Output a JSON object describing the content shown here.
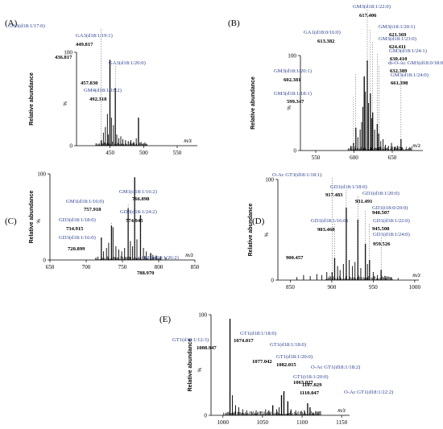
{
  "common": {
    "ylabel": "Relative abundance",
    "percent": "%",
    "xlabel": "m/z"
  },
  "chart_data": [
    {
      "type": "line",
      "panel": "(A)",
      "xlim": [
        400,
        580
      ],
      "xticks": [
        450,
        500,
        550
      ],
      "yticks": [
        0,
        100
      ],
      "ylim": [
        0,
        100
      ],
      "peaks": [
        {
          "mz": 436.817,
          "rel": 6
        },
        {
          "mz": 449.817,
          "rel": 92
        },
        {
          "mz": 457.83,
          "rel": 62
        },
        {
          "mz": 492.318,
          "rel": 30
        }
      ],
      "noise": [
        {
          "mz": 440.0,
          "rel": 14
        },
        {
          "mz": 443.0,
          "rel": 20
        },
        {
          "mz": 446.0,
          "rel": 34
        },
        {
          "mz": 447.5,
          "rel": 12
        },
        {
          "mz": 452.0,
          "rel": 30
        },
        {
          "mz": 455.0,
          "rel": 22
        },
        {
          "mz": 460.0,
          "rel": 12
        },
        {
          "mz": 463.0,
          "rel": 8
        },
        {
          "mz": 466.0,
          "rel": 10
        },
        {
          "mz": 469.0,
          "rel": 7
        },
        {
          "mz": 473.0,
          "rel": 6
        },
        {
          "mz": 477.0,
          "rel": 5
        },
        {
          "mz": 481.0,
          "rel": 6
        },
        {
          "mz": 485.0,
          "rel": 4
        },
        {
          "mz": 489.0,
          "rel": 8
        }
      ],
      "annotations": [
        {
          "text": "GA3(d18:1/17:0)",
          "value": "436.817"
        },
        {
          "text": "GA3(d18:1/19:1)",
          "value": "449.817"
        },
        {
          "text": "GA3(d18:1/20:0)",
          "value": "457.830"
        },
        {
          "text": "GM4(d18:1/16:2)",
          "value": "492.318"
        }
      ]
    },
    {
      "type": "line",
      "panel": "(B)",
      "xlim": [
        530,
        690
      ],
      "xticks": [
        550,
        600,
        650
      ],
      "yticks": [
        0,
        100
      ],
      "ylim": [
        0,
        100
      ],
      "peaks": [
        {
          "mz": 599.347,
          "rel": 8
        },
        {
          "mz": 602.381,
          "rel": 24
        },
        {
          "mz": 613.382,
          "rel": 78
        },
        {
          "mz": 617.406,
          "rel": 95
        },
        {
          "mz": 621.369,
          "rel": 60
        },
        {
          "mz": 624.411,
          "rel": 40
        },
        {
          "mz": 630.41,
          "rel": 28
        },
        {
          "mz": 632.389,
          "rel": 18
        },
        {
          "mz": 661.398,
          "rel": 12
        }
      ],
      "noise": [
        {
          "mz": 596.0,
          "rel": 5
        },
        {
          "mz": 605.0,
          "rel": 14
        },
        {
          "mz": 608.0,
          "rel": 22
        },
        {
          "mz": 610.0,
          "rel": 30
        },
        {
          "mz": 611.5,
          "rel": 46
        },
        {
          "mz": 615.0,
          "rel": 62
        },
        {
          "mz": 619.0,
          "rel": 50
        },
        {
          "mz": 623.0,
          "rel": 34
        },
        {
          "mz": 627.0,
          "rel": 22
        },
        {
          "mz": 635.0,
          "rel": 10
        },
        {
          "mz": 638.0,
          "rel": 12
        },
        {
          "mz": 641.0,
          "rel": 6
        },
        {
          "mz": 645.0,
          "rel": 5
        },
        {
          "mz": 649.0,
          "rel": 8
        },
        {
          "mz": 653.0,
          "rel": 4
        },
        {
          "mz": 657.0,
          "rel": 5
        }
      ],
      "annotations": [
        {
          "text": "GM3(d18:1/22:0)",
          "value": "617.406"
        },
        {
          "text": "GA1(d18:0/16:0)",
          "value": "613.382"
        },
        {
          "text": "GM3(t18:1/20:1)",
          "value": "621.369"
        },
        {
          "text": "GM3(d18:1/23:0)",
          "value": "624.411"
        },
        {
          "text": "GM3(d18:1/24:1)",
          "value": "630.410"
        },
        {
          "text": "di-O-Ac GM3(d18:0/18:0)",
          "value": "632.389"
        },
        {
          "text": "GM3(d18:1/24:0)",
          "value": "661.398"
        },
        {
          "text": "GM3(d18:1/20:1)",
          "value": "602.381"
        },
        {
          "text": "GM3(d18:1/18:1)",
          "value": "599.347"
        }
      ]
    },
    {
      "type": "line",
      "panel": "(C)",
      "xlim": [
        650,
        850
      ],
      "xticks": [
        650,
        700,
        750,
        800,
        850
      ],
      "yticks": [
        0,
        100
      ],
      "ylim": [
        0,
        100
      ],
      "peaks": [
        {
          "mz": 720.899,
          "rel": 26
        },
        {
          "mz": 734.915,
          "rel": 40
        },
        {
          "mz": 757.918,
          "rel": 60
        },
        {
          "mz": 766.898,
          "rel": 96
        },
        {
          "mz": 774.945,
          "rel": 52
        },
        {
          "mz": 788.97,
          "rel": 8
        }
      ],
      "noise": [
        {
          "mz": 724.0,
          "rel": 10
        },
        {
          "mz": 728.0,
          "rel": 14
        },
        {
          "mz": 731.0,
          "rel": 20
        },
        {
          "mz": 737.0,
          "rel": 38
        },
        {
          "mz": 741.0,
          "rel": 16
        },
        {
          "mz": 745.0,
          "rel": 12
        },
        {
          "mz": 749.0,
          "rel": 10
        },
        {
          "mz": 753.0,
          "rel": 14
        },
        {
          "mz": 761.0,
          "rel": 22
        },
        {
          "mz": 764.0,
          "rel": 16
        },
        {
          "mz": 770.0,
          "rel": 24
        },
        {
          "mz": 779.0,
          "rel": 14
        },
        {
          "mz": 783.0,
          "rel": 10
        },
        {
          "mz": 792.0,
          "rel": 6
        },
        {
          "mz": 797.0,
          "rel": 5
        },
        {
          "mz": 803.0,
          "rel": 4
        },
        {
          "mz": 810.0,
          "rel": 3
        }
      ],
      "annotations": [
        {
          "text": "GM1(d18:1/16:2)",
          "value": "766.898"
        },
        {
          "text": "GM1(d18:1/16:0)",
          "value": "757.918"
        },
        {
          "text": "GD3(d18:1/18:0)",
          "value": "734.915"
        },
        {
          "text": "GD3(d18:1/24:2)",
          "value": "774.945"
        },
        {
          "text": "GD3(d18:1/16:0)",
          "value": "720.899"
        },
        {
          "text": "GD3(d18:1/26:2)",
          "value": "788.970"
        }
      ]
    },
    {
      "type": "line",
      "panel": "(D)",
      "xlim": [
        835,
        1005
      ],
      "xticks": [
        850,
        900,
        950,
        1000
      ],
      "yticks": [
        0,
        100
      ],
      "ylim": [
        0,
        100
      ],
      "peaks": [
        {
          "mz": 900.457,
          "rel": 8
        },
        {
          "mz": 903.468,
          "rel": 22
        },
        {
          "mz": 917.483,
          "rel": 72
        },
        {
          "mz": 931.491,
          "rel": 60
        },
        {
          "mz": 940.507,
          "rel": 36
        },
        {
          "mz": 945.508,
          "rel": 20
        },
        {
          "mz": 959.526,
          "rel": 10
        }
      ],
      "noise": [
        {
          "mz": 858.0,
          "rel": 3
        },
        {
          "mz": 866.0,
          "rel": 5
        },
        {
          "mz": 874.0,
          "rel": 4
        },
        {
          "mz": 882.0,
          "rel": 6
        },
        {
          "mz": 888.0,
          "rel": 5
        },
        {
          "mz": 894.0,
          "rel": 8
        },
        {
          "mz": 907.0,
          "rel": 14
        },
        {
          "mz": 910.0,
          "rel": 10
        },
        {
          "mz": 914.0,
          "rel": 16
        },
        {
          "mz": 921.0,
          "rel": 20
        },
        {
          "mz": 925.0,
          "rel": 14
        },
        {
          "mz": 928.0,
          "rel": 18
        },
        {
          "mz": 935.0,
          "rel": 12
        },
        {
          "mz": 943.0,
          "rel": 16
        },
        {
          "mz": 950.0,
          "rel": 8
        },
        {
          "mz": 955.0,
          "rel": 5
        },
        {
          "mz": 965.0,
          "rel": 4
        },
        {
          "mz": 972.0,
          "rel": 3
        },
        {
          "mz": 980.0,
          "rel": 2
        }
      ],
      "annotations": [
        {
          "text": "O-Ac GT3(d18:1/18:1)",
          "value": "900.457"
        },
        {
          "text": "GD1(d18:1/18:0)",
          "value": "917.483"
        },
        {
          "text": "GD1(d18:1/20:0)",
          "value": "931.491"
        },
        {
          "text": "GD1(t18:0/20:0)",
          "value": "940.507"
        },
        {
          "text": "GD1(d18:1/16:0)",
          "value": "903.468"
        },
        {
          "text": "GD1(d18:1/22:0)",
          "value": "945.508"
        },
        {
          "text": "GD1(d18:1/24:0)",
          "value": "959.526"
        }
      ]
    },
    {
      "type": "line",
      "panel": "(E)",
      "xlim": [
        985,
        1160
      ],
      "xticks": [
        1000,
        1050,
        1100,
        1150
      ],
      "yticks": [
        0,
        100
      ],
      "ylim": [
        0,
        100
      ],
      "peaks": [
        {
          "mz": 1008.947,
          "rel": 96
        },
        {
          "mz": 1063.027,
          "rel": 10
        },
        {
          "mz": 1074.017,
          "rel": 20
        },
        {
          "mz": 1077.042,
          "rel": 24
        },
        {
          "mz": 1082.015,
          "rel": 14
        },
        {
          "mz": 1107.029,
          "rel": 12
        },
        {
          "mz": 1110.047,
          "rel": 8
        }
      ],
      "noise": [
        {
          "mz": 1012.0,
          "rel": 20
        },
        {
          "mz": 1016.0,
          "rel": 10
        },
        {
          "mz": 1020.0,
          "rel": 8
        },
        {
          "mz": 1025.0,
          "rel": 6
        },
        {
          "mz": 1030.0,
          "rel": 5
        },
        {
          "mz": 1036.0,
          "rel": 4
        },
        {
          "mz": 1042.0,
          "rel": 5
        },
        {
          "mz": 1048.0,
          "rel": 4
        },
        {
          "mz": 1054.0,
          "rel": 6
        },
        {
          "mz": 1058.0,
          "rel": 5
        },
        {
          "mz": 1068.0,
          "rel": 6
        },
        {
          "mz": 1071.0,
          "rel": 8
        },
        {
          "mz": 1086.0,
          "rel": 6
        },
        {
          "mz": 1092.0,
          "rel": 5
        },
        {
          "mz": 1098.0,
          "rel": 4
        },
        {
          "mz": 1103.0,
          "rel": 5
        },
        {
          "mz": 1114.0,
          "rel": 3
        },
        {
          "mz": 1120.0,
          "rel": 2
        }
      ],
      "annotations": [
        {
          "text": "GT1(d18:1/18:0)",
          "value": "1074.017"
        },
        {
          "text": "GT1(d18:1/12:3)",
          "value": "1008.947"
        },
        {
          "text": "GT1(d18:1/18:0)",
          "value": "1077.042"
        },
        {
          "text": "GT1(d18:1/20:0)",
          "value": "1082.015"
        },
        {
          "text": "O-Ac GT1(d18:1/18:2)",
          "value": "1063.027"
        },
        {
          "text": "GT1(t18:1/20:0)",
          "value": "1107.029"
        },
        {
          "text": "O-Ac GT1(d18:1/22:2)",
          "value": "1110.047"
        }
      ]
    }
  ]
}
